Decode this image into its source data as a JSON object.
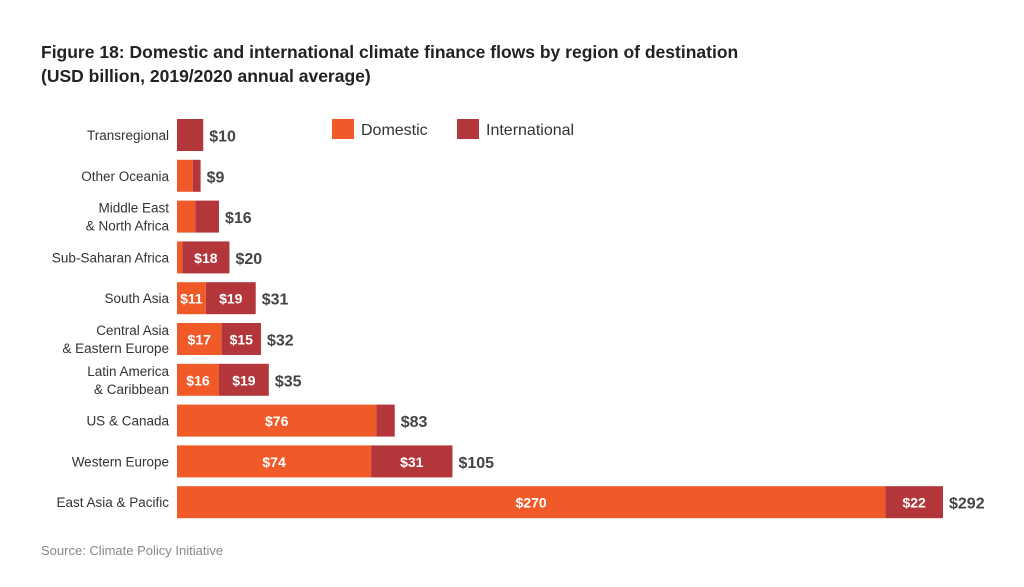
{
  "chart_data": {
    "type": "bar",
    "orientation": "horizontal",
    "stacked": true,
    "title": "Figure 18: Domestic and international climate finance flows by region of destination",
    "subtitle": "(USD billion, 2019/2020 annual average)",
    "source": "Source: Climate Policy Initiative",
    "legend_position": "top",
    "grid": false,
    "xlim": [
      0,
      292
    ],
    "categories": [
      [
        "Transregional"
      ],
      [
        "Other Oceania"
      ],
      [
        "Middle East",
        "& North Africa"
      ],
      [
        "Sub-Saharan Africa"
      ],
      [
        "South Asia"
      ],
      [
        "Central Asia",
        "& Eastern Europe"
      ],
      [
        "Latin America",
        "& Caribbean"
      ],
      [
        "US & Canada"
      ],
      [
        "Western Europe"
      ],
      [
        "East Asia & Pacific"
      ]
    ],
    "series": [
      {
        "name": "Domestic",
        "color": "#F05A28",
        "values": [
          0,
          6,
          7,
          2,
          11,
          17,
          16,
          76,
          74,
          270
        ],
        "labels": [
          "",
          "",
          "",
          "",
          "$11",
          "$17",
          "$16",
          "$76",
          "$74",
          "$270"
        ]
      },
      {
        "name": "International",
        "color": "#B3373A",
        "values": [
          10,
          3,
          9,
          18,
          19,
          15,
          19,
          7,
          31,
          22
        ],
        "labels": [
          "",
          "",
          "",
          "$18",
          "$19",
          "$15",
          "$19",
          "",
          "$31",
          "$22"
        ]
      }
    ],
    "totals": [
      "$10",
      "$9",
      "$16",
      "$20",
      "$31",
      "$32",
      "$35",
      "$83",
      "$105",
      "$292"
    ]
  }
}
